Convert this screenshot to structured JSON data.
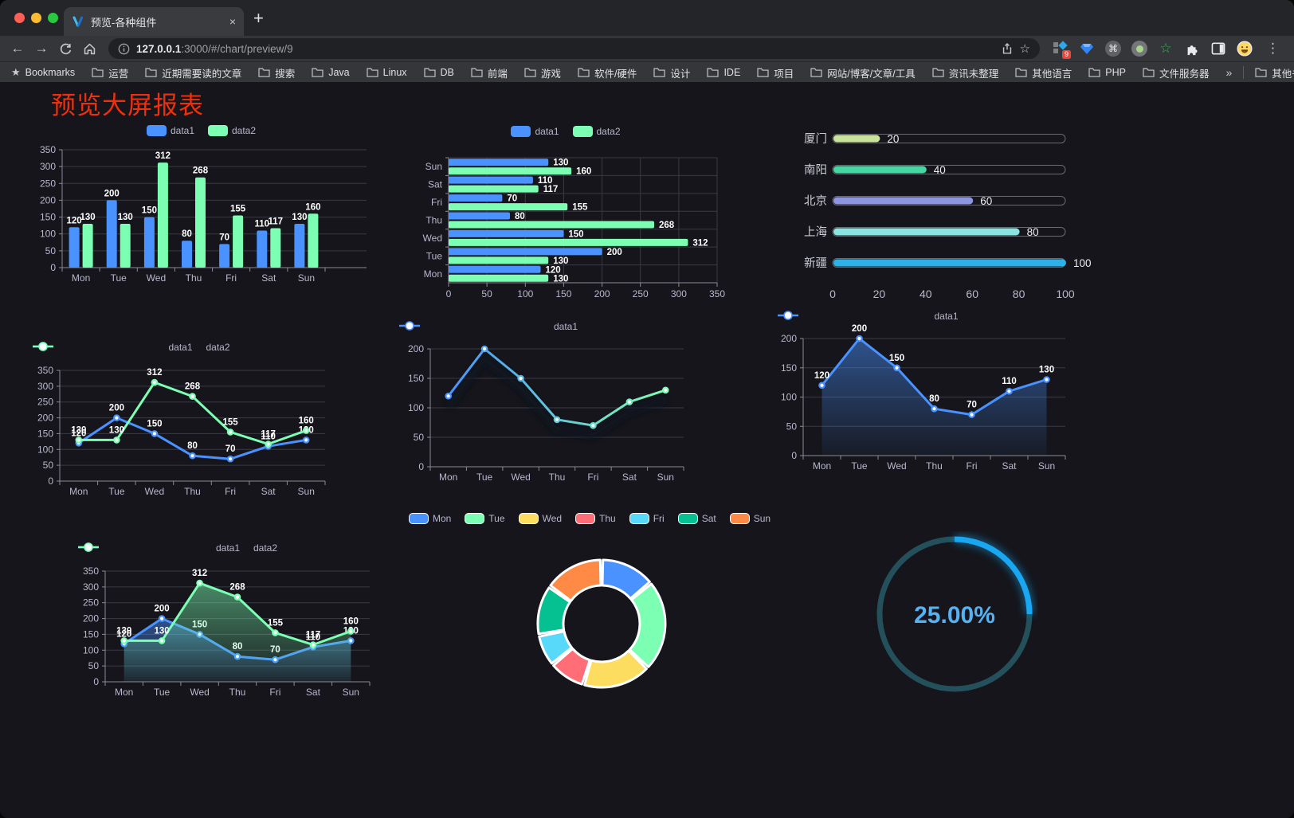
{
  "browser": {
    "tab_title": "预览-各种组件",
    "url_host": "127.0.0.1",
    "url_rest": ":3000/#/chart/preview/9",
    "extension_badge": "9",
    "icons": {
      "back": "←",
      "forward": "→",
      "close": "×",
      "new_tab": "+",
      "menu": "⋮",
      "command": "⌘",
      "star_outline": "☆",
      "bookmarks_star": "★",
      "green_star": "☆",
      "overflow": "»"
    },
    "bookmarks_bar": {
      "first": "Bookmarks",
      "folders": [
        "运营",
        "近期需要读的文章",
        "搜索",
        "Java",
        "Linux",
        "DB",
        "前端",
        "游戏",
        "软件/硬件",
        "设计",
        "IDE",
        "项目",
        "网站/博客/文章/工具",
        "资讯未整理",
        "其他语言",
        "PHP",
        "文件服务器"
      ],
      "overflow": "»",
      "other": "其他书签"
    }
  },
  "page": {
    "title": "预览大屏报表",
    "title_color": "#f0300d",
    "background": "#15151b"
  },
  "chart_data": [
    {
      "id": "bar-vertical",
      "type": "bar",
      "categories": [
        "Mon",
        "Tue",
        "Wed",
        "Thu",
        "Fri",
        "Sat",
        "Sun"
      ],
      "series": [
        {
          "name": "data1",
          "color": "#4992ff",
          "values": [
            120,
            200,
            150,
            80,
            70,
            110,
            130
          ]
        },
        {
          "name": "data2",
          "color": "#7cffb2",
          "values": [
            130,
            130,
            312,
            268,
            155,
            117,
            160
          ]
        }
      ],
      "ylim": [
        0,
        350
      ],
      "ytick_step": 50,
      "grid": true,
      "legend_position": "top",
      "point_labels": true
    },
    {
      "id": "bar-horizontal",
      "type": "bar",
      "orientation": "horizontal",
      "categories": [
        "Mon",
        "Tue",
        "Wed",
        "Thu",
        "Fri",
        "Sat",
        "Sun"
      ],
      "display_order_top_to_bottom": [
        "Sun",
        "Sat",
        "Fri",
        "Thu",
        "Wed",
        "Tue",
        "Mon"
      ],
      "series": [
        {
          "name": "data1",
          "color": "#4992ff",
          "values": [
            120,
            200,
            150,
            80,
            70,
            110,
            130
          ]
        },
        {
          "name": "data2",
          "color": "#7cffb2",
          "values": [
            130,
            130,
            312,
            268,
            155,
            117,
            160
          ]
        }
      ],
      "xlim": [
        0,
        350
      ],
      "xtick_step": 50,
      "grid": true,
      "legend_position": "top",
      "point_labels": true
    },
    {
      "id": "progress-bars",
      "type": "bar",
      "orientation": "horizontal",
      "categories": [
        "厦门",
        "南阳",
        "北京",
        "上海",
        "新疆"
      ],
      "values": [
        20,
        40,
        60,
        80,
        100
      ],
      "colors": [
        "#c8e49a",
        "#45d6a2",
        "#8d94e0",
        "#8ae4e0",
        "#2cb1e8"
      ],
      "xlim": [
        0,
        100
      ],
      "xticks": [
        0,
        20,
        40,
        60,
        80,
        100
      ],
      "point_labels": true
    },
    {
      "id": "line-two-series",
      "type": "line",
      "categories": [
        "Mon",
        "Tue",
        "Wed",
        "Thu",
        "Fri",
        "Sat",
        "Sun"
      ],
      "series": [
        {
          "name": "data1",
          "color": "#4992ff",
          "values": [
            120,
            200,
            150,
            80,
            70,
            110,
            130
          ]
        },
        {
          "name": "data2",
          "color": "#7cffb2",
          "values": [
            130,
            130,
            312,
            268,
            155,
            117,
            160
          ]
        }
      ],
      "ylim": [
        0,
        350
      ],
      "ytick_step": 50,
      "grid": true,
      "legend_position": "top",
      "point_labels": true
    },
    {
      "id": "line-gradient",
      "type": "line",
      "categories": [
        "Mon",
        "Tue",
        "Wed",
        "Thu",
        "Fri",
        "Sat",
        "Sun"
      ],
      "series": [
        {
          "name": "data1",
          "color_gradient": [
            "#4992ff",
            "#7cffb2"
          ],
          "values": [
            120,
            200,
            150,
            80,
            70,
            110,
            130
          ]
        }
      ],
      "ylim": [
        0,
        200
      ],
      "ytick_step": 50,
      "grid": true,
      "legend_position": "top",
      "point_labels": false
    },
    {
      "id": "area-single",
      "type": "area",
      "categories": [
        "Mon",
        "Tue",
        "Wed",
        "Thu",
        "Fri",
        "Sat",
        "Sun"
      ],
      "series": [
        {
          "name": "data1",
          "color": "#4992ff",
          "values": [
            120,
            200,
            150,
            80,
            70,
            110,
            130
          ]
        }
      ],
      "ylim": [
        0,
        200
      ],
      "ytick_step": 50,
      "grid": true,
      "legend_position": "top",
      "point_labels": true
    },
    {
      "id": "area-two-series",
      "type": "area",
      "categories": [
        "Mon",
        "Tue",
        "Wed",
        "Thu",
        "Fri",
        "Sat",
        "Sun"
      ],
      "series": [
        {
          "name": "data1",
          "color": "#4992ff",
          "values": [
            120,
            200,
            150,
            80,
            70,
            110,
            130
          ]
        },
        {
          "name": "data2",
          "color": "#7cffb2",
          "values": [
            130,
            130,
            312,
            268,
            155,
            117,
            160
          ]
        }
      ],
      "ylim": [
        0,
        350
      ],
      "ytick_step": 50,
      "grid": true,
      "legend_position": "top",
      "point_labels": true
    },
    {
      "id": "donut",
      "type": "pie",
      "categories": [
        "Mon",
        "Tue",
        "Wed",
        "Thu",
        "Fri",
        "Sat",
        "Sun"
      ],
      "values": [
        120,
        200,
        150,
        80,
        70,
        110,
        130
      ],
      "colors": [
        "#4992ff",
        "#7cffb2",
        "#fddd60",
        "#ff6e76",
        "#58d9f9",
        "#05c091",
        "#ff8a45"
      ],
      "legend_position": "top",
      "inner_radius_ratio": 0.6,
      "border_color": "#ffffff"
    },
    {
      "id": "gauge",
      "type": "gauge",
      "value": 25,
      "label": "25.00%",
      "color": "#18a7f0",
      "track_color": "#24505c",
      "text_color": "#57b2f2"
    }
  ]
}
